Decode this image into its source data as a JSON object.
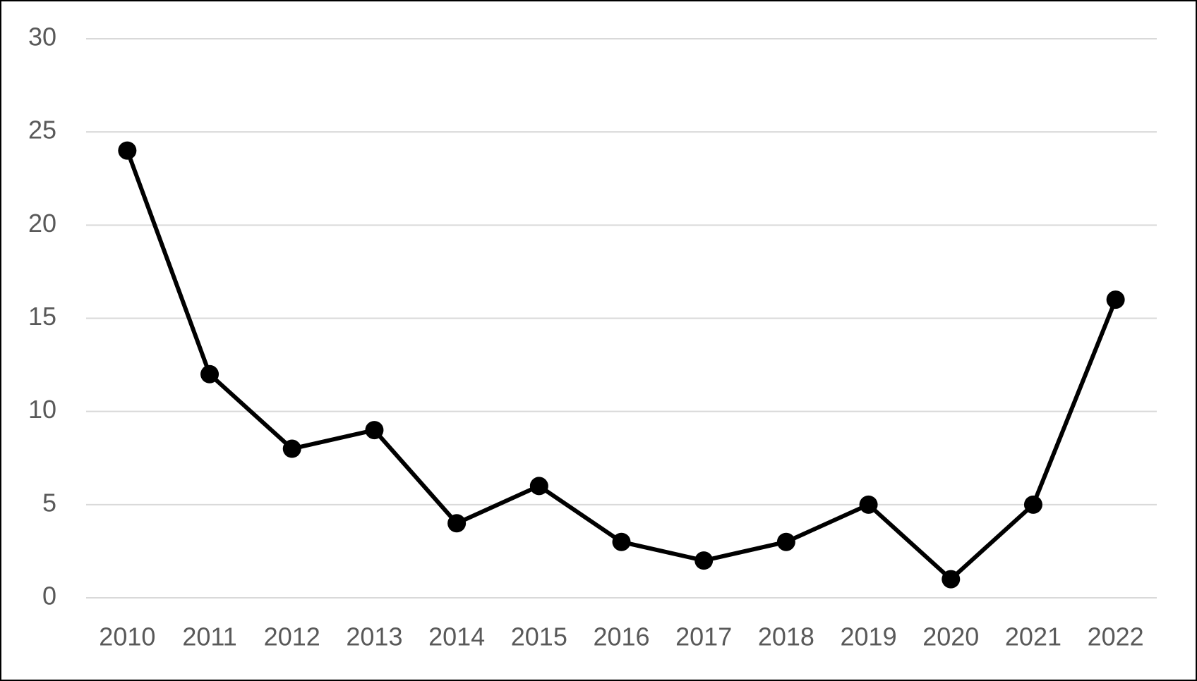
{
  "chart_data": {
    "type": "line",
    "categories": [
      "2010",
      "2011",
      "2012",
      "2013",
      "2014",
      "2015",
      "2016",
      "2017",
      "2018",
      "2019",
      "2020",
      "2021",
      "2022"
    ],
    "values": [
      24,
      12,
      8,
      9,
      4,
      6,
      3,
      2,
      3,
      5,
      1,
      5,
      16
    ],
    "color": "#000000",
    "ylim": [
      0,
      30
    ],
    "yticks": [
      0,
      5,
      10,
      15,
      20,
      25,
      30
    ],
    "grid": true
  }
}
